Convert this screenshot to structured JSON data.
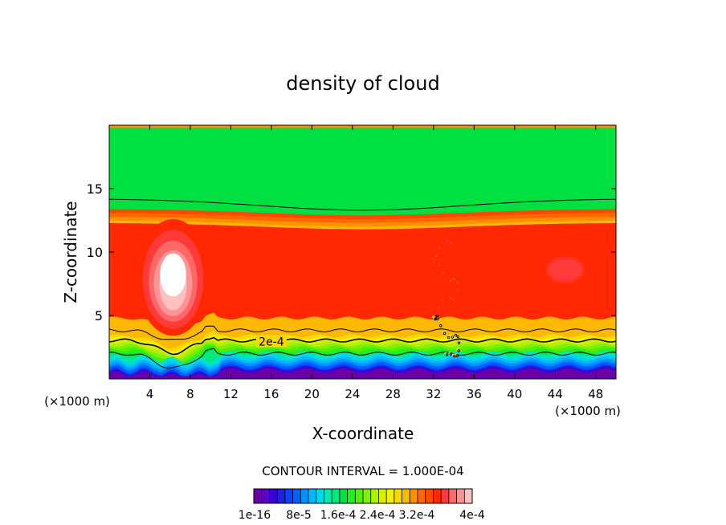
{
  "chart_data": {
    "type": "contour",
    "title": "density of cloud",
    "xlabel": "X-coordinate",
    "ylabel": "Z-coordinate",
    "x_unit_left": "(×1000 m)",
    "x_unit_right": "(×1000 m)",
    "xlim": [
      0,
      50
    ],
    "ylim": [
      0,
      20
    ],
    "x_ticks": [
      4,
      8,
      12,
      16,
      20,
      24,
      28,
      32,
      36,
      40,
      44,
      48
    ],
    "y_ticks": [
      5,
      10,
      15
    ],
    "contour_interval_text": "CONTOUR INTERVAL = 1.000E-04",
    "contour_line_label": "2e-4",
    "colorbar": {
      "colors": [
        "#6a00a8",
        "#5a00c8",
        "#3a00d8",
        "#2020e0",
        "#1040ff",
        "#0060ff",
        "#0090ff",
        "#00b8ff",
        "#00d8e8",
        "#00e8b0",
        "#00e880",
        "#00e040",
        "#20f020",
        "#50f000",
        "#80f000",
        "#b0f000",
        "#d8f000",
        "#f0f000",
        "#f8d800",
        "#ffb800",
        "#ff9000",
        "#ff6800",
        "#ff4800",
        "#ff2800",
        "#ff3a3a",
        "#ff6868",
        "#ff9494",
        "#ffc0c0"
      ],
      "labels": [
        "1e-16",
        "8e-5",
        "1.6e-4",
        "2.4e-4",
        "3.2e-4",
        "4e-4"
      ]
    }
  }
}
